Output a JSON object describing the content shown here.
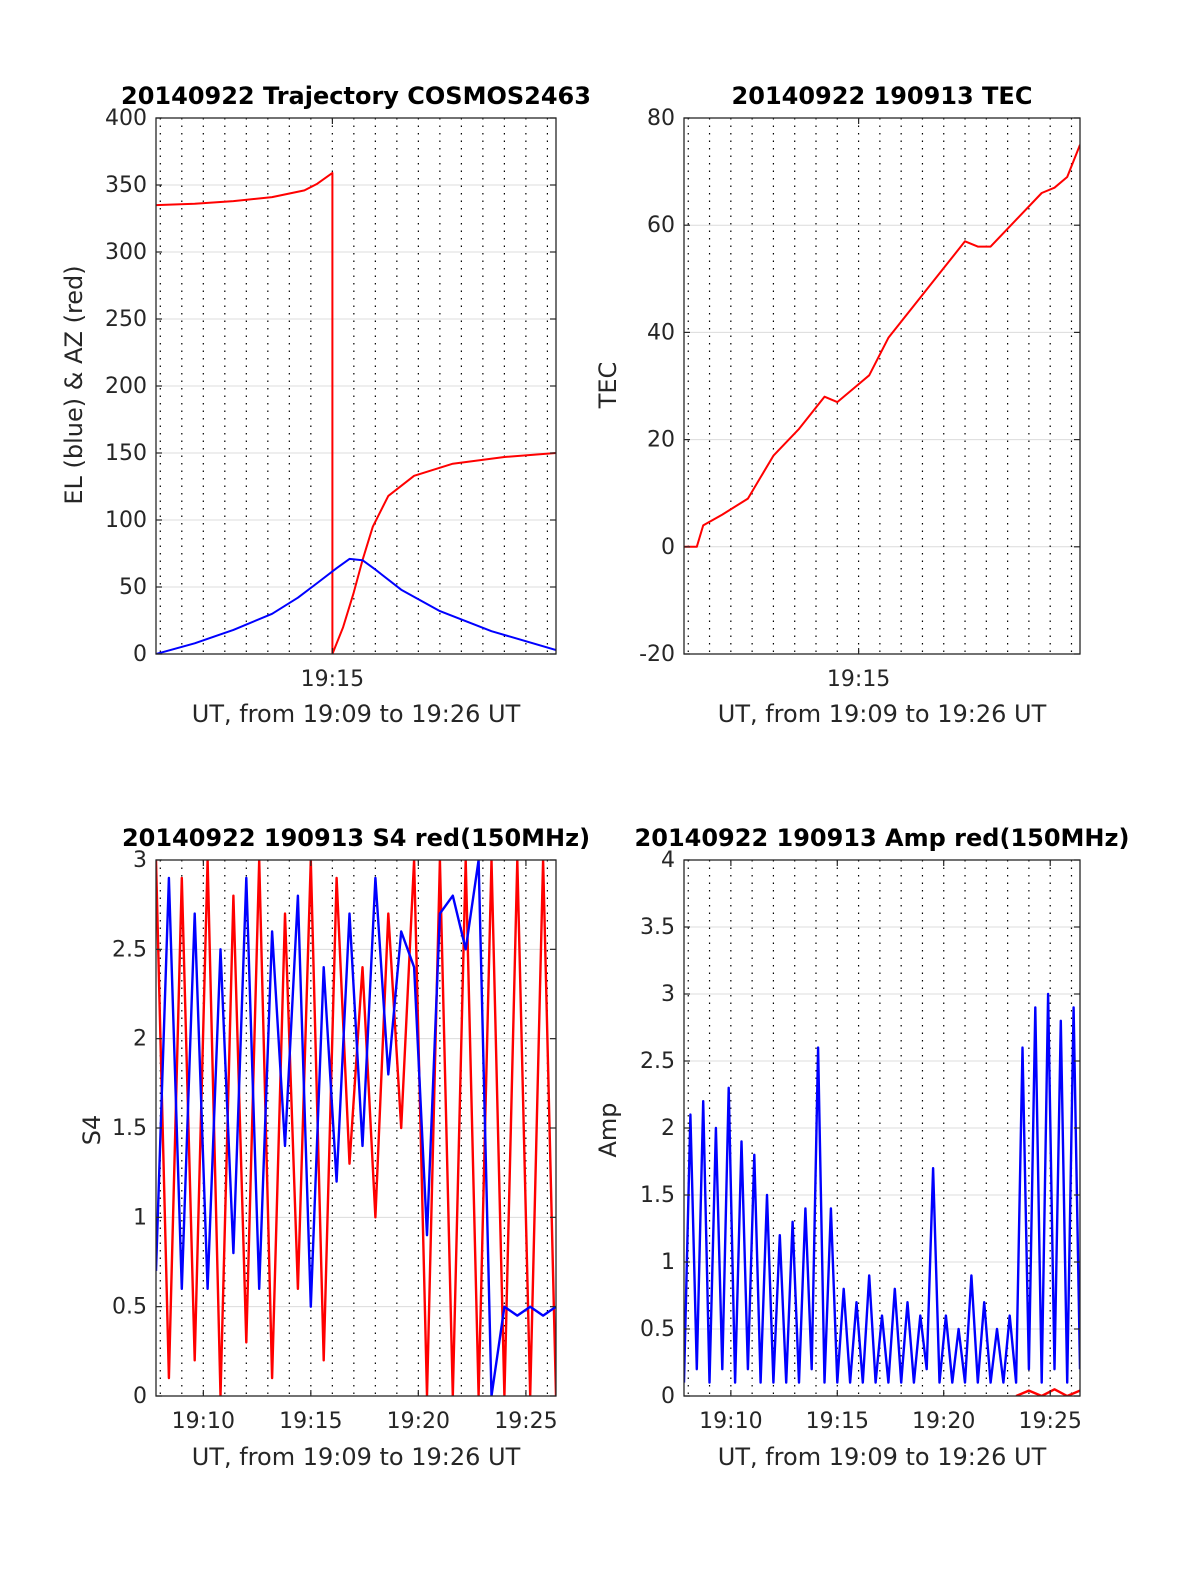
{
  "chart_data": [
    {
      "type": "line",
      "title": "20140922 Trajectory COSMOS2463",
      "xlabel": "UT, from 19:09 to 19:26 UT",
      "ylabel": "EL (blue) & AZ (red)",
      "xlim": [
        19.13,
        19.44
      ],
      "ylim": [
        0,
        400
      ],
      "grid": true,
      "x_ticks": [
        {
          "value": 19.2667,
          "label": "19:15"
        }
      ],
      "y_ticks": [
        {
          "value": 0,
          "label": "0"
        },
        {
          "value": 50,
          "label": "50"
        },
        {
          "value": 100,
          "label": "100"
        },
        {
          "value": 150,
          "label": "150"
        },
        {
          "value": 200,
          "label": "200"
        },
        {
          "value": 250,
          "label": "250"
        },
        {
          "value": 300,
          "label": "300"
        },
        {
          "value": 350,
          "label": "350"
        },
        {
          "value": 400,
          "label": "400"
        }
      ],
      "series": [
        {
          "color": "#ff0000",
          "x": [
            19.13,
            19.16,
            19.19,
            19.22,
            19.245,
            19.255,
            19.2667,
            19.2667,
            19.275,
            19.283,
            19.29,
            19.298,
            19.31,
            19.33,
            19.36,
            19.4,
            19.44
          ],
          "y": [
            335,
            336,
            338,
            341,
            346,
            351,
            359,
            0,
            20,
            45,
            70,
            95,
            118,
            133,
            142,
            147,
            150
          ]
        },
        {
          "color": "#0000ff",
          "x": [
            19.13,
            19.16,
            19.19,
            19.22,
            19.24,
            19.255,
            19.27,
            19.28,
            19.29,
            19.3,
            19.32,
            19.35,
            19.39,
            19.44
          ],
          "y": [
            0,
            8,
            18,
            30,
            42,
            53,
            64,
            71,
            70,
            63,
            48,
            32,
            17,
            3
          ]
        }
      ]
    },
    {
      "type": "line",
      "title": "20140922 190913 TEC",
      "xlabel": "UT, from 19:09 to 19:26 UT",
      "ylabel": "TEC",
      "xlim": [
        19.13,
        19.44
      ],
      "ylim": [
        -20,
        80
      ],
      "grid": true,
      "x_ticks": [
        {
          "value": 19.2667,
          "label": "19:15"
        }
      ],
      "y_ticks": [
        {
          "value": -20,
          "label": "-20"
        },
        {
          "value": 0,
          "label": "0"
        },
        {
          "value": 20,
          "label": "20"
        },
        {
          "value": 40,
          "label": "40"
        },
        {
          "value": 60,
          "label": "60"
        },
        {
          "value": 80,
          "label": "80"
        }
      ],
      "series": [
        {
          "color": "#ff0000",
          "x": [
            19.13,
            19.14,
            19.145,
            19.16,
            19.18,
            19.2,
            19.22,
            19.24,
            19.25,
            19.26,
            19.275,
            19.29,
            19.31,
            19.33,
            19.35,
            19.36,
            19.37,
            19.39,
            19.41,
            19.42,
            19.43,
            19.44
          ],
          "y": [
            0,
            0,
            4,
            6,
            9,
            17,
            22,
            28,
            27,
            29,
            32,
            39,
            45,
            51,
            57,
            56,
            56,
            61,
            66,
            67,
            69,
            75
          ]
        }
      ]
    },
    {
      "type": "line",
      "title": "20140922 190913 S4 red(150MHz)",
      "xlabel": "UT, from 19:09 to 19:26 UT",
      "ylabel": "S4",
      "xlim": [
        19.13,
        19.44
      ],
      "ylim": [
        0,
        3
      ],
      "grid": true,
      "x_ticks": [
        {
          "value": 19.1667,
          "label": "19:10"
        },
        {
          "value": 19.25,
          "label": "19:15"
        },
        {
          "value": 19.3333,
          "label": "19:20"
        },
        {
          "value": 19.4167,
          "label": "19:25"
        }
      ],
      "y_ticks": [
        {
          "value": 0,
          "label": "0"
        },
        {
          "value": 0.5,
          "label": "0.5"
        },
        {
          "value": 1,
          "label": "1"
        },
        {
          "value": 1.5,
          "label": "1.5"
        },
        {
          "value": 2,
          "label": "2"
        },
        {
          "value": 2.5,
          "label": "2.5"
        },
        {
          "value": 3,
          "label": "3"
        }
      ],
      "series": [
        {
          "color": "#ff0000",
          "x": [
            19.13,
            19.14,
            19.15,
            19.16,
            19.17,
            19.18,
            19.19,
            19.2,
            19.21,
            19.22,
            19.23,
            19.24,
            19.25,
            19.26,
            19.27,
            19.28,
            19.29,
            19.3,
            19.31,
            19.32,
            19.33,
            19.34,
            19.35,
            19.36,
            19.37,
            19.38,
            19.39,
            19.4,
            19.41,
            19.42,
            19.43,
            19.44
          ],
          "y": [
            3.0,
            0.1,
            2.9,
            0.2,
            3.0,
            0.0,
            2.8,
            0.3,
            3.0,
            0.1,
            2.7,
            0.6,
            3.0,
            0.2,
            2.9,
            1.3,
            2.4,
            1.0,
            2.7,
            1.5,
            3.0,
            0.0,
            3.0,
            0.0,
            3.0,
            0.0,
            3.0,
            0.0,
            3.0,
            0.0,
            3.0,
            0.0
          ]
        },
        {
          "color": "#0000ff",
          "x": [
            19.13,
            19.14,
            19.15,
            19.16,
            19.17,
            19.18,
            19.19,
            19.2,
            19.21,
            19.22,
            19.23,
            19.24,
            19.25,
            19.26,
            19.27,
            19.28,
            19.29,
            19.3,
            19.31,
            19.32,
            19.33,
            19.34,
            19.35,
            19.36,
            19.37,
            19.38,
            19.39,
            19.4,
            19.41,
            19.42,
            19.43,
            19.44
          ],
          "y": [
            0.7,
            2.9,
            0.6,
            2.7,
            0.6,
            2.5,
            0.8,
            2.9,
            0.6,
            2.6,
            1.4,
            2.8,
            0.5,
            2.4,
            1.2,
            2.7,
            1.4,
            2.9,
            1.8,
            2.6,
            2.4,
            0.9,
            2.7,
            2.8,
            2.5,
            3.0,
            0.0,
            0.5,
            0.45,
            0.5,
            0.45,
            0.5
          ]
        }
      ]
    },
    {
      "type": "line",
      "title": "20140922 190913 Amp red(150MHz)",
      "xlabel": "UT, from 19:09 to 19:26 UT",
      "ylabel": "Amp",
      "xlim": [
        19.13,
        19.44
      ],
      "ylim": [
        0,
        4
      ],
      "grid": true,
      "x_ticks": [
        {
          "value": 19.1667,
          "label": "19:10"
        },
        {
          "value": 19.25,
          "label": "19:15"
        },
        {
          "value": 19.3333,
          "label": "19:20"
        },
        {
          "value": 19.4167,
          "label": "19:25"
        }
      ],
      "y_ticks": [
        {
          "value": 0,
          "label": "0"
        },
        {
          "value": 0.5,
          "label": "0.5"
        },
        {
          "value": 1,
          "label": "1"
        },
        {
          "value": 1.5,
          "label": "1.5"
        },
        {
          "value": 2,
          "label": "2"
        },
        {
          "value": 2.5,
          "label": "2.5"
        },
        {
          "value": 3,
          "label": "3"
        },
        {
          "value": 3.5,
          "label": "3.5"
        },
        {
          "value": 4,
          "label": "4"
        }
      ],
      "series": [
        {
          "color": "#0000ff",
          "x": [
            19.13,
            19.135,
            19.14,
            19.145,
            19.15,
            19.155,
            19.16,
            19.165,
            19.17,
            19.175,
            19.18,
            19.185,
            19.19,
            19.195,
            19.2,
            19.205,
            19.21,
            19.215,
            19.22,
            19.225,
            19.23,
            19.235,
            19.24,
            19.245,
            19.25,
            19.255,
            19.26,
            19.265,
            19.27,
            19.275,
            19.28,
            19.285,
            19.29,
            19.295,
            19.3,
            19.305,
            19.31,
            19.315,
            19.32,
            19.325,
            19.33,
            19.335,
            19.34,
            19.345,
            19.35,
            19.355,
            19.36,
            19.365,
            19.37,
            19.375,
            19.38,
            19.385,
            19.39,
            19.395,
            19.4,
            19.405,
            19.41,
            19.415,
            19.42,
            19.425,
            19.43,
            19.435,
            19.44
          ],
          "y": [
            0.1,
            2.1,
            0.2,
            2.2,
            0.1,
            2.0,
            0.2,
            2.3,
            0.1,
            1.9,
            0.2,
            1.8,
            0.1,
            1.5,
            0.1,
            1.2,
            0.1,
            1.3,
            0.1,
            1.4,
            0.2,
            2.6,
            0.1,
            1.4,
            0.1,
            0.8,
            0.1,
            0.7,
            0.1,
            0.9,
            0.1,
            0.6,
            0.1,
            0.8,
            0.1,
            0.7,
            0.1,
            0.6,
            0.2,
            1.7,
            0.1,
            0.6,
            0.1,
            0.5,
            0.1,
            0.9,
            0.1,
            0.7,
            0.1,
            0.5,
            0.1,
            0.6,
            0.1,
            2.6,
            0.2,
            2.9,
            0.1,
            3.0,
            0.2,
            2.8,
            0.1,
            2.9,
            0.2
          ]
        },
        {
          "color": "#ff0000",
          "x": [
            19.39,
            19.4,
            19.41,
            19.42,
            19.43,
            19.44
          ],
          "y": [
            0.0,
            0.04,
            0.0,
            0.05,
            0.0,
            0.04
          ]
        }
      ]
    }
  ]
}
